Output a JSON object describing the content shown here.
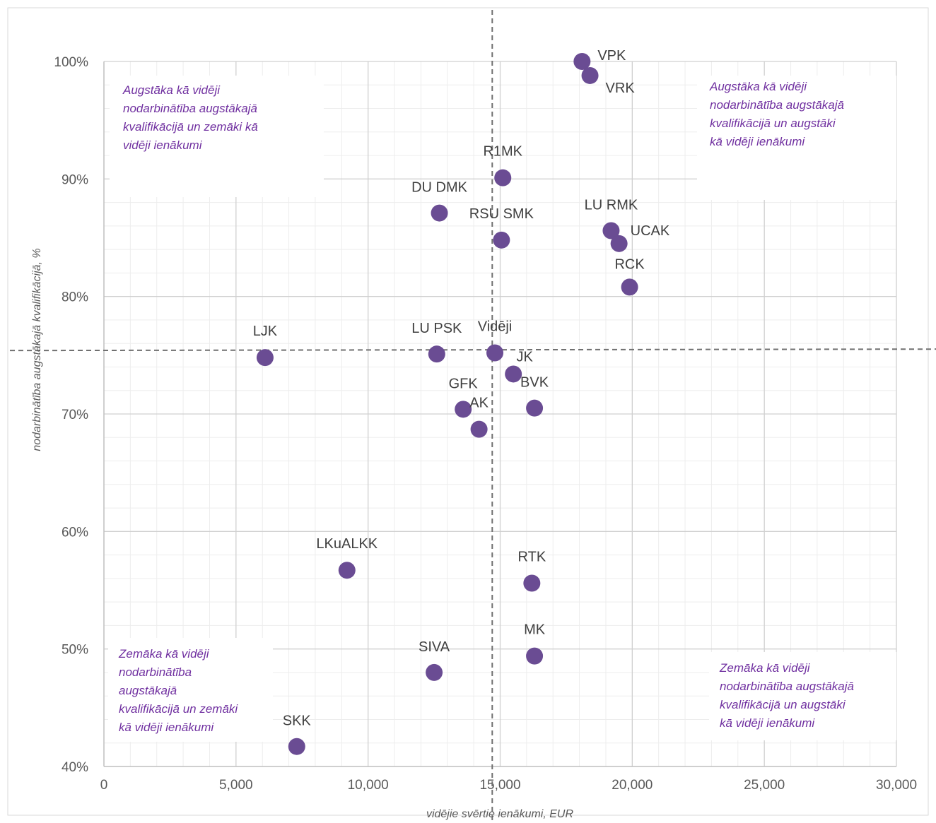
{
  "chart_data": {
    "type": "scatter",
    "title": "",
    "xlabel": "vidējie svērtie ienākumi, EUR",
    "ylabel": "nodarbinātība augstākajā kvalifikācijā, %",
    "xlim": [
      0,
      30000
    ],
    "ylim": [
      40,
      100
    ],
    "x_ticks": [
      "0",
      "5,000",
      "10,000",
      "15,000",
      "20,000",
      "25,000",
      "30,000"
    ],
    "y_ticks": [
      "40%",
      "50%",
      "60%",
      "70%",
      "80%",
      "90%",
      "100%"
    ],
    "grid": true,
    "point_color": "#6a4c93",
    "avg_line_x": 14700,
    "avg_line_y": 75.4,
    "points": [
      {
        "label": "VPK",
        "x": 18100,
        "y": 100
      },
      {
        "label": "VRK",
        "x": 18400,
        "y": 98.8
      },
      {
        "label": "R1MK",
        "x": 15100,
        "y": 90.1
      },
      {
        "label": "DU DMK",
        "x": 12700,
        "y": 87.1
      },
      {
        "label": "RSU SMK",
        "x": 15050,
        "y": 84.8
      },
      {
        "label": "LU RMK",
        "x": 19200,
        "y": 85.6
      },
      {
        "label": "UCAK",
        "x": 19500,
        "y": 84.5
      },
      {
        "label": "RCK",
        "x": 19900,
        "y": 80.8
      },
      {
        "label": "LJK",
        "x": 6100,
        "y": 74.8
      },
      {
        "label": "LU PSK",
        "x": 12600,
        "y": 75.1
      },
      {
        "label": "Vidēji",
        "x": 14800,
        "y": 75.2
      },
      {
        "label": "JK",
        "x": 15500,
        "y": 73.4
      },
      {
        "label": "BVK",
        "x": 16300,
        "y": 70.5
      },
      {
        "label": "GFK",
        "x": 13600,
        "y": 70.4
      },
      {
        "label": "AK",
        "x": 14200,
        "y": 68.7
      },
      {
        "label": "LKuALKK",
        "x": 9200,
        "y": 56.7
      },
      {
        "label": "RTK",
        "x": 16200,
        "y": 55.6
      },
      {
        "label": "MK",
        "x": 16300,
        "y": 49.4
      },
      {
        "label": "SIVA",
        "x": 12500,
        "y": 48.0
      },
      {
        "label": "SKK",
        "x": 7300,
        "y": 41.7
      }
    ],
    "annotations": [
      [
        "Augstāka kā vidēji",
        "nodarbinātība augstākajā",
        "kvalifikācijā un zemāki kā",
        "vidēji ienākumi"
      ],
      [
        "Augstāka kā vidēji",
        "nodarbinātība augstākajā",
        "kvalifikācijā un augstāki",
        "kā vidēji ienākumi"
      ],
      [
        "Zemāka kā vidēji",
        "nodarbinātība",
        "augstākajā",
        "kvalifikācijā un zemāki",
        "kā vidēji ienākumi"
      ],
      [
        "Zemāka kā vidēji",
        "nodarbinātība augstākajā",
        "kvalifikācijā un augstāki",
        "kā vidēji ienākumi"
      ]
    ]
  }
}
